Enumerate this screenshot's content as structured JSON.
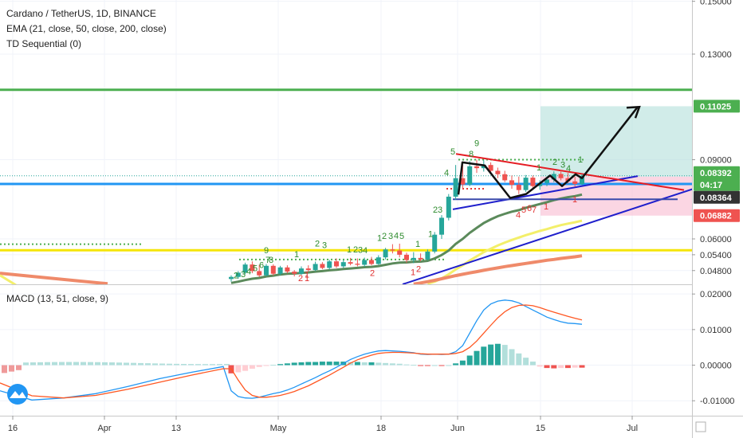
{
  "legend": {
    "title": "Cardano / TetherUS, 1D, BINANCE",
    "ema": "EMA (21, close, 50, close, 200, close)",
    "td": "TD Sequential (0)",
    "macd": "MACD (13, 51, close, 9)"
  },
  "colors": {
    "up": "#26a69a",
    "down": "#ef5350",
    "ema21": "#5b8a5b",
    "ema50": "#f3ef6a",
    "ema200": "#ef8a6a",
    "resistance": "#4caf50",
    "support_mid": "#2196f3",
    "support_low": "#f5e50a",
    "trend_blue": "#1f1fcc",
    "trend_red": "#e51c23",
    "macd_line": "#2196f3",
    "signal_line": "#ff5722",
    "badge_green": "#4caf50",
    "badge_dark": "#333333",
    "badge_red": "#ef5350"
  },
  "chart_data": [
    {
      "type": "candlestick",
      "title": "Cardano / TetherUS, 1D, BINANCE",
      "ylim": [
        0.0428,
        0.1505
      ],
      "y_ticks": [
        "0.15000",
        "0.13000",
        "0.11025",
        "0.09000",
        "0.08392",
        "0.08364",
        "0.06882",
        "0.06000",
        "0.05400",
        "0.04800"
      ],
      "x_ticks": [
        "16",
        "Apr",
        "13",
        "May",
        "18",
        "Jun",
        "15",
        "Jul"
      ],
      "horizontal_levels": [
        {
          "value": 0.1165,
          "role": "resistance"
        },
        {
          "value": 0.0808,
          "role": "support_mid"
        },
        {
          "value": 0.0557,
          "role": "support_low"
        }
      ],
      "price_labels": [
        {
          "text": "0.11025",
          "role": "target"
        },
        {
          "text": "0.08392",
          "role": "last_price"
        },
        {
          "text": "04:17",
          "role": "countdown"
        },
        {
          "text": "0.08364",
          "role": "entry"
        },
        {
          "text": "0.06882",
          "role": "stop"
        }
      ],
      "position": {
        "entry": 0.0836,
        "target": 0.11025,
        "stop": 0.06882
      },
      "candles": [
        {
          "o": 0.0448,
          "h": 0.0462,
          "l": 0.0438,
          "c": 0.0456
        },
        {
          "o": 0.0456,
          "h": 0.0478,
          "l": 0.0449,
          "c": 0.0472
        },
        {
          "o": 0.0472,
          "h": 0.051,
          "l": 0.0466,
          "c": 0.0503
        },
        {
          "o": 0.0503,
          "h": 0.0515,
          "l": 0.047,
          "c": 0.0478
        },
        {
          "o": 0.0478,
          "h": 0.0502,
          "l": 0.0456,
          "c": 0.0462
        },
        {
          "o": 0.0462,
          "h": 0.0505,
          "l": 0.0458,
          "c": 0.0498
        },
        {
          "o": 0.0498,
          "h": 0.0504,
          "l": 0.0461,
          "c": 0.0468
        },
        {
          "o": 0.0468,
          "h": 0.0498,
          "l": 0.0462,
          "c": 0.0492
        },
        {
          "o": 0.0492,
          "h": 0.05,
          "l": 0.047,
          "c": 0.0476
        },
        {
          "o": 0.0476,
          "h": 0.0482,
          "l": 0.0458,
          "c": 0.0468
        },
        {
          "o": 0.0468,
          "h": 0.0496,
          "l": 0.0464,
          "c": 0.0488
        },
        {
          "o": 0.0488,
          "h": 0.05,
          "l": 0.0476,
          "c": 0.0482
        },
        {
          "o": 0.0482,
          "h": 0.0514,
          "l": 0.0478,
          "c": 0.0505
        },
        {
          "o": 0.0505,
          "h": 0.0512,
          "l": 0.0485,
          "c": 0.049
        },
        {
          "o": 0.049,
          "h": 0.0521,
          "l": 0.0484,
          "c": 0.0515
        },
        {
          "o": 0.0515,
          "h": 0.0526,
          "l": 0.049,
          "c": 0.0496
        },
        {
          "o": 0.0496,
          "h": 0.052,
          "l": 0.049,
          "c": 0.0512
        },
        {
          "o": 0.0512,
          "h": 0.0528,
          "l": 0.05,
          "c": 0.0506
        },
        {
          "o": 0.0506,
          "h": 0.0526,
          "l": 0.0496,
          "c": 0.0502
        },
        {
          "o": 0.0502,
          "h": 0.0529,
          "l": 0.0494,
          "c": 0.052
        },
        {
          "o": 0.052,
          "h": 0.0532,
          "l": 0.05,
          "c": 0.0505
        },
        {
          "o": 0.0505,
          "h": 0.0538,
          "l": 0.0502,
          "c": 0.053
        },
        {
          "o": 0.053,
          "h": 0.0566,
          "l": 0.0522,
          "c": 0.056
        },
        {
          "o": 0.056,
          "h": 0.058,
          "l": 0.0545,
          "c": 0.0556
        },
        {
          "o": 0.0556,
          "h": 0.0582,
          "l": 0.053,
          "c": 0.054
        },
        {
          "o": 0.054,
          "h": 0.0548,
          "l": 0.051,
          "c": 0.052
        },
        {
          "o": 0.052,
          "h": 0.055,
          "l": 0.0508,
          "c": 0.0528
        },
        {
          "o": 0.0528,
          "h": 0.0545,
          "l": 0.0515,
          "c": 0.0522
        },
        {
          "o": 0.0522,
          "h": 0.056,
          "l": 0.0518,
          "c": 0.0552
        },
        {
          "o": 0.0552,
          "h": 0.0626,
          "l": 0.0545,
          "c": 0.0616
        },
        {
          "o": 0.0616,
          "h": 0.069,
          "l": 0.06,
          "c": 0.068
        },
        {
          "o": 0.068,
          "h": 0.077,
          "l": 0.067,
          "c": 0.076
        },
        {
          "o": 0.076,
          "h": 0.088,
          "l": 0.0748,
          "c": 0.083
        },
        {
          "o": 0.083,
          "h": 0.088,
          "l": 0.079,
          "c": 0.0806
        },
        {
          "o": 0.0806,
          "h": 0.0895,
          "l": 0.08,
          "c": 0.0875
        },
        {
          "o": 0.0875,
          "h": 0.09,
          "l": 0.085,
          "c": 0.0868
        },
        {
          "o": 0.0868,
          "h": 0.0898,
          "l": 0.0855,
          "c": 0.088
        },
        {
          "o": 0.088,
          "h": 0.089,
          "l": 0.085,
          "c": 0.0858
        },
        {
          "o": 0.0858,
          "h": 0.087,
          "l": 0.083,
          "c": 0.0845
        },
        {
          "o": 0.0845,
          "h": 0.0858,
          "l": 0.0815,
          "c": 0.0822
        },
        {
          "o": 0.0822,
          "h": 0.084,
          "l": 0.079,
          "c": 0.0805
        },
        {
          "o": 0.0805,
          "h": 0.0836,
          "l": 0.077,
          "c": 0.0785
        },
        {
          "o": 0.0785,
          "h": 0.0842,
          "l": 0.0778,
          "c": 0.0832
        },
        {
          "o": 0.0832,
          "h": 0.084,
          "l": 0.0792,
          "c": 0.08
        },
        {
          "o": 0.08,
          "h": 0.0822,
          "l": 0.0786,
          "c": 0.0812
        },
        {
          "o": 0.0812,
          "h": 0.0836,
          "l": 0.08,
          "c": 0.0825
        },
        {
          "o": 0.0825,
          "h": 0.0856,
          "l": 0.0815,
          "c": 0.0846
        },
        {
          "o": 0.0846,
          "h": 0.086,
          "l": 0.0822,
          "c": 0.083
        },
        {
          "o": 0.083,
          "h": 0.085,
          "l": 0.081,
          "c": 0.0818
        },
        {
          "o": 0.0818,
          "h": 0.0836,
          "l": 0.0798,
          "c": 0.0808
        },
        {
          "o": 0.0808,
          "h": 0.0845,
          "l": 0.0804,
          "c": 0.0839
        }
      ],
      "ema": [
        {
          "name": "EMA 21",
          "values": [
            0.0433,
            0.0438,
            0.0444,
            0.0449,
            0.0452,
            0.0458,
            0.0461,
            0.0465,
            0.0468,
            0.0469,
            0.0471,
            0.0473,
            0.0476,
            0.0478,
            0.0481,
            0.0483,
            0.0486,
            0.0488,
            0.049,
            0.0493,
            0.0494,
            0.0497,
            0.0502,
            0.0507,
            0.051,
            0.0511,
            0.0513,
            0.0514,
            0.0517,
            0.0526,
            0.0539,
            0.0556,
            0.0581,
            0.06,
            0.0623,
            0.0642,
            0.066,
            0.0674,
            0.0686,
            0.0695,
            0.0703,
            0.0709,
            0.0718,
            0.0725,
            0.0732,
            0.0739,
            0.0747,
            0.0753,
            0.0758,
            0.0762,
            0.0768
          ]
        },
        {
          "name": "EMA 50",
          "values": [
            null,
            null,
            null,
            null,
            null,
            null,
            null,
            null,
            null,
            null,
            null,
            null,
            null,
            null,
            null,
            null,
            null,
            null,
            null,
            null,
            null,
            null,
            null,
            null,
            null,
            null,
            null,
            null,
            0.043,
            0.0438,
            0.045,
            0.0466,
            0.0484,
            0.05,
            0.0518,
            0.0534,
            0.055,
            0.0563,
            0.0575,
            0.0586,
            0.0596,
            0.0605,
            0.0614,
            0.0622,
            0.063,
            0.0637,
            0.0645,
            0.0652,
            0.0658,
            0.0663,
            0.0669
          ]
        },
        {
          "name": "EMA 200",
          "values": [
            null,
            null,
            null,
            null,
            null,
            null,
            null,
            null,
            null,
            null,
            null,
            null,
            null,
            null,
            null,
            null,
            null,
            null,
            null,
            null,
            null,
            null,
            null,
            null,
            null,
            null,
            0.0429,
            0.0433,
            0.0438,
            0.0443,
            0.0449,
            0.0455,
            0.0461,
            0.0466,
            0.0471,
            0.0476,
            0.0481,
            0.0486,
            0.049,
            0.0495,
            0.0499,
            0.0503,
            0.0507,
            0.0511,
            0.0515,
            0.0519,
            0.0522,
            0.0526,
            0.0529,
            0.0532,
            0.0536
          ]
        }
      ],
      "td_labels": {
        "green": [
          "2",
          "3",
          "4",
          "5",
          "6",
          "7",
          "8",
          "9",
          "2",
          "3",
          "1",
          "1",
          "2",
          "3",
          "4",
          "1",
          "2",
          "3",
          "4",
          "5",
          "1",
          "1",
          "2",
          "3",
          "4",
          "5",
          "8",
          "9",
          "1",
          "2",
          "3",
          "4",
          "1"
        ],
        "red": [
          "1",
          "2",
          "1",
          "2",
          "1",
          "2",
          "4",
          "5",
          "6",
          "7",
          "1",
          "1"
        ]
      }
    },
    {
      "type": "line",
      "title": "MACD (13, 51, close, 9)",
      "ylim": [
        -0.0142,
        0.0225
      ],
      "y_ticks": [
        "0.02000",
        "0.01000",
        "0.00000",
        "-0.01000"
      ],
      "series": [
        {
          "name": "MACD",
          "values": [
            -0.0072,
            -0.0088,
            -0.0092,
            -0.0093,
            -0.009,
            -0.0085,
            -0.008,
            -0.0076,
            -0.007,
            -0.0062,
            -0.0053,
            -0.0044,
            -0.0035,
            -0.0025,
            -0.0016,
            -0.0006,
            0.0005,
            0.0016,
            0.0024,
            0.0031,
            0.0036,
            0.004,
            0.0041,
            0.004,
            0.0039,
            0.0037,
            0.0035,
            0.0031,
            0.003,
            0.0031,
            0.003,
            0.0031,
            0.0038,
            0.0055,
            0.009,
            0.0125,
            0.0155,
            0.0172,
            0.018,
            0.0183,
            0.0181,
            0.0175,
            0.0165,
            0.0155,
            0.0145,
            0.0135,
            0.0128,
            0.0122,
            0.0118,
            0.0117,
            0.0115
          ]
        },
        {
          "name": "Signal",
          "values": [
            -0.001,
            -0.0042,
            -0.007,
            -0.0085,
            -0.009,
            -0.009,
            -0.0088,
            -0.0085,
            -0.008,
            -0.0074,
            -0.0066,
            -0.0058,
            -0.0048,
            -0.0038,
            -0.0028,
            -0.0017,
            -0.0006,
            0.0006,
            0.0015,
            0.0022,
            0.0028,
            0.0033,
            0.0035,
            0.0036,
            0.0036,
            0.0035,
            0.0034,
            0.0032,
            0.0031,
            0.0031,
            0.0031,
            0.0031,
            0.0033,
            0.0038,
            0.005,
            0.0068,
            0.009,
            0.0112,
            0.0133,
            0.015,
            0.0162,
            0.0168,
            0.0169,
            0.0167,
            0.0162,
            0.0155,
            0.0149,
            0.0143,
            0.0137,
            0.0132,
            0.0127
          ]
        },
        {
          "name": "Histogram",
          "values": [
            -0.0023,
            -0.002,
            -0.0016,
            -0.001,
            -0.0005,
            -0.0002,
            0.0001,
            0.0003,
            0.0005,
            0.0007,
            0.0008,
            0.0009,
            0.0009,
            0.001,
            0.001,
            0.001,
            0.001,
            0.0009,
            0.0009,
            0.0008,
            0.0008,
            0.0007,
            0.0006,
            0.0005,
            0.0004,
            0.0002,
            0.0001,
            -0.0001,
            -0.0001,
            0.0,
            -0.0001,
            0.0,
            0.0005,
            0.0013,
            0.0027,
            0.004,
            0.0052,
            0.0058,
            0.006,
            0.0057,
            0.0045,
            0.0033,
            0.0021,
            0.001,
            -0.0004,
            -0.0008,
            -0.0009,
            -0.0008,
            -0.0008,
            -0.0007,
            -0.0007
          ]
        }
      ]
    }
  ]
}
